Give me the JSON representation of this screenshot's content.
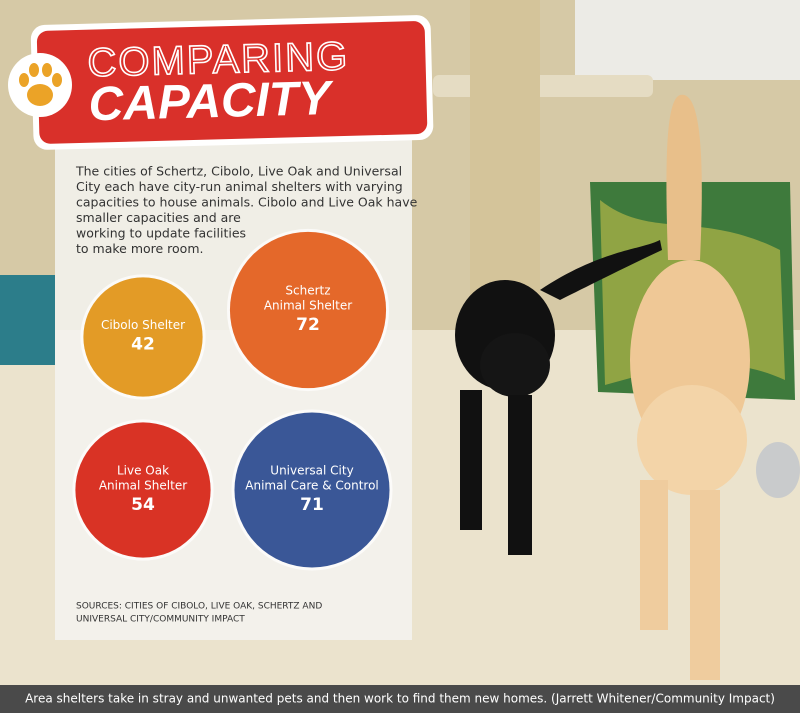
{
  "header": {
    "title_line1": "COMPARING",
    "title_line2": "CAPACITY"
  },
  "intro_lines": [
    "The cities of Schertz, Cibolo, Live Oak and Universal",
    "City each have city-run animal shelters with varying",
    "capacities to house animals. Cibolo and Live Oak have",
    "smaller capacities and are",
    "working to update facilities",
    "to make more room."
  ],
  "shelters": [
    {
      "name_lines": [
        "Cibolo Shelter"
      ],
      "capacity": 42,
      "color": "#e39b26"
    },
    {
      "name_lines": [
        "Schertz",
        "Animal Shelter"
      ],
      "capacity": 72,
      "color": "#e4682a"
    },
    {
      "name_lines": [
        "Live Oak",
        "Animal Shelter"
      ],
      "capacity": 54,
      "color": "#d93325"
    },
    {
      "name_lines": [
        "Universal City",
        "Animal Care & Control"
      ],
      "capacity": 71,
      "color": "#3a5797"
    }
  ],
  "sources_lines": [
    "SOURCES: CITIES OF CIBOLO, LIVE OAK, SCHERTZ AND",
    "UNIVERSAL CITY/COMMUNITY IMPACT"
  ],
  "caption": "Area shelters take in stray and unwanted pets and then work to find them new homes. (Jarrett Whitener/Community Impact)"
}
